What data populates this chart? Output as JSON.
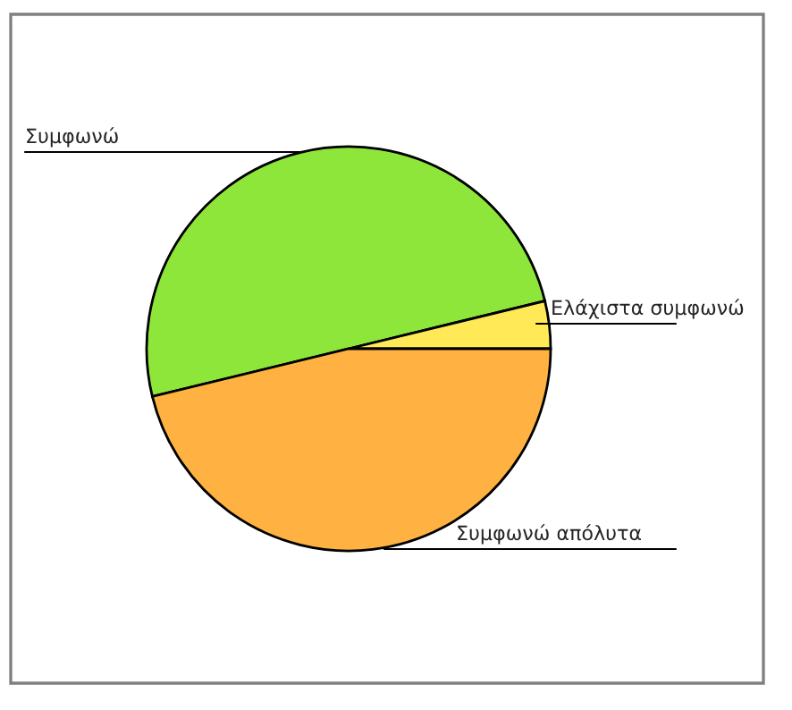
{
  "chart_data": {
    "type": "pie",
    "categories": [
      "Συμφωνώ",
      "Ελάχιστα συμφωνώ",
      "Συμφωνώ απόλυτα"
    ],
    "values": [
      50,
      3.8,
      46.2
    ],
    "colors": [
      "#8ee63a",
      "#ffe956",
      "#ffb142"
    ],
    "legend": false
  }
}
